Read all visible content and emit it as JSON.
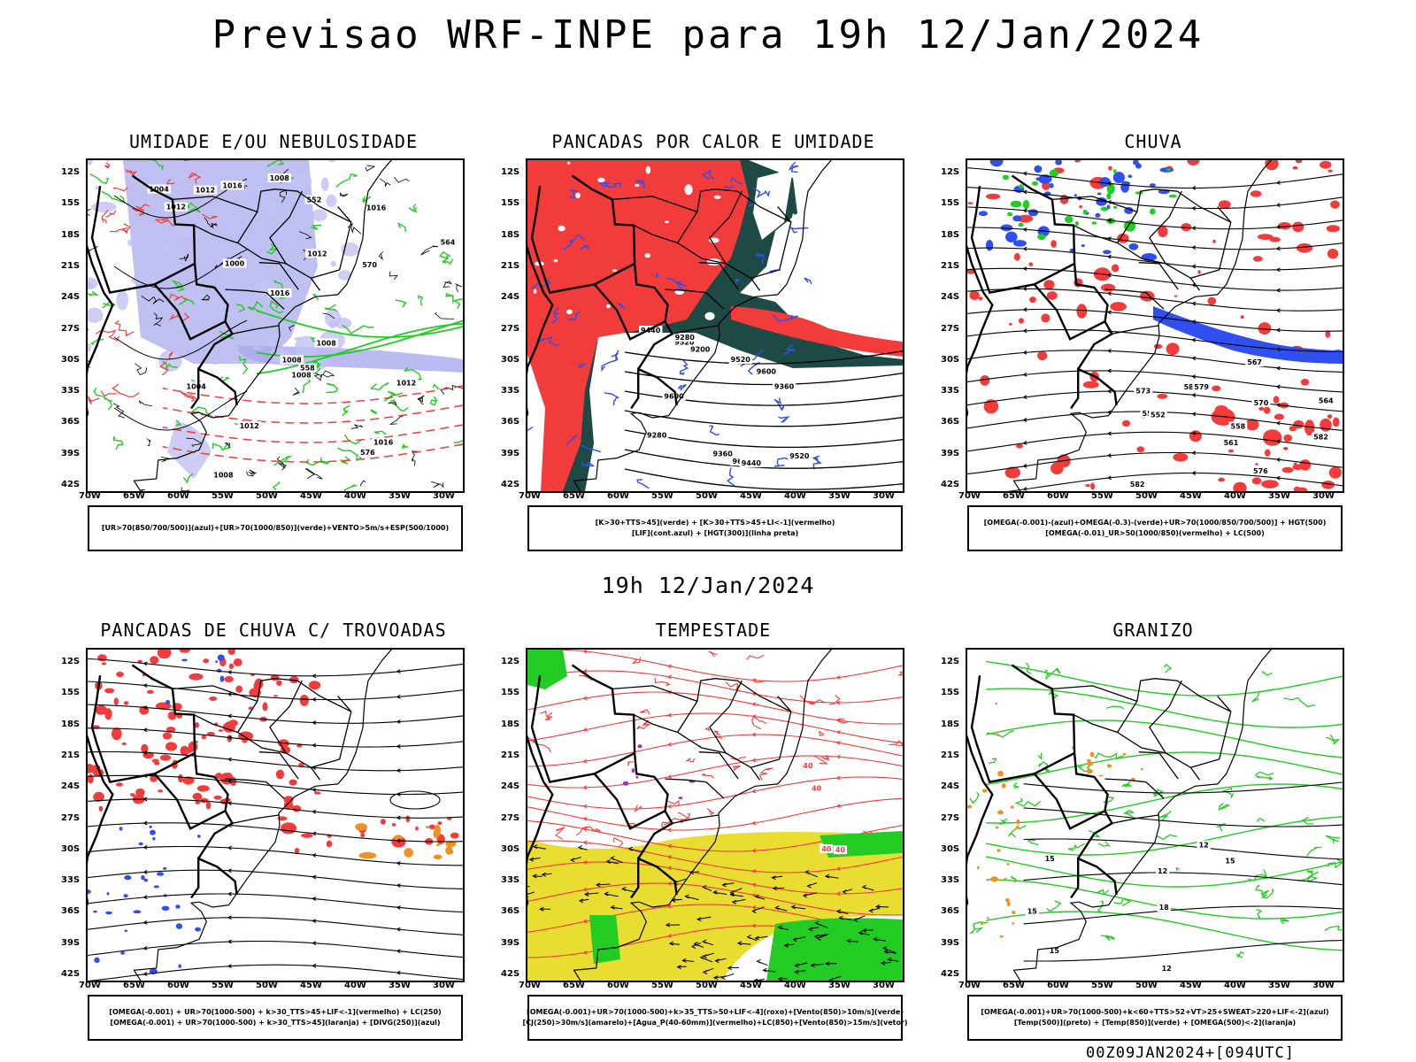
{
  "title": "Previsao WRF-INPE  para 19h 12/Jan/2024",
  "mid_title": "19h 12/Jan/2024",
  "footer": "00Z09JAN2024+[094UTC]",
  "colors": {
    "red": "#f23c3c",
    "green": "#22cc22",
    "blue": "#2f4ff0",
    "lavender": "#aaaaee",
    "yellow": "#e8dd30",
    "orange": "#f09020",
    "dark_teal": "#1e4a46",
    "black": "#000000"
  },
  "axes": {
    "lat_labels": [
      "12S",
      "15S",
      "18S",
      "21S",
      "24S",
      "27S",
      "30S",
      "33S",
      "36S",
      "39S",
      "42S"
    ],
    "lon_labels": [
      "70W",
      "65W",
      "60W",
      "55W",
      "50W",
      "45W",
      "40W",
      "35W",
      "30W"
    ]
  },
  "chart_data": [
    {
      "type": "map",
      "title": "UMIDADE E/OU NEBULOSIDADE",
      "legend": [
        "[UR>70(850/700/500)](azul)+[UR>70(1000/850)](verde)+VENTO>5m/s+ESP(500/1000)"
      ],
      "contour_labels": [
        "1008",
        "1008",
        "1008",
        "1004",
        "1004",
        "1012",
        "1016",
        "1012",
        "1016",
        "1012",
        "1012",
        "1016",
        "1008",
        "1012",
        "1008",
        "1016",
        "1000",
        "552",
        "570",
        "564",
        "558",
        "576"
      ]
    },
    {
      "type": "map",
      "title": "PANCADAS POR CALOR E UMIDADE",
      "legend": [
        "[K>30+TTS>45](verde) + [K>30+TTS>45+LI<-1](vermelho)",
        "[LIF](cont.azul) + [HGT(300)](linha preta)"
      ],
      "contour_labels": [
        "9600",
        "9520",
        "9600",
        "9520",
        "9600",
        "9440",
        "9360",
        "9280",
        "9200",
        "9520",
        "9440",
        "9360",
        "9280"
      ]
    },
    {
      "type": "map",
      "title": "CHUVA",
      "legend": [
        "[OMEGA(-0.001)-(azul)+OMEGA(-0.3)-(verde)+UR>70(1000/850/700/500)] + HGT(500)",
        "[OMEGA(-0.01)_UR>50(1000/850)(vermelho) + LC(500)"
      ],
      "contour_labels": [
        "588",
        "582",
        "582",
        "579",
        "576",
        "573",
        "570",
        "567",
        "564",
        "561",
        "558",
        "555",
        "552"
      ]
    },
    {
      "type": "map",
      "title": "PANCADAS DE CHUVA C/ TROVOADAS",
      "legend": [
        "[OMEGA(-0.001) + UR>70(1000-500) + k>30_TTS>45+LIF<-1](vermelho) + LC(250)",
        "[OMEGA(-0.001) + UR>70(1000-500) + k>30_TTS>45](laranja) + [DIVG(250)](azul)"
      ],
      "contour_labels": []
    },
    {
      "type": "map",
      "title": "TEMPESTADE",
      "legend": [
        "[OMEGA(-0.001)+UR>70(1000-500)+k>35_TTS>50+LIF<-4](roxo)+[Vento(850)>10m/s](verde)",
        "[CJ(250)>30m/s](amarelo)+[Agua_P(40-60mm)](vermelho)+LC(850)+[Vento(850)>15m/s](vetor)"
      ],
      "contour_labels": [
        "40",
        "40",
        "40",
        "40"
      ]
    },
    {
      "type": "map",
      "title": "GRANIZO",
      "legend": [
        "[OMEGA(-0.001)+UR>70(1000-500)+k<60+TTS>52+VT>25+SWEAT>220+LIF<-2](azul)",
        "[Temp(500)](preto) + [Temp(850)](verde) + [OMEGA(500)<-2](laranja)"
      ],
      "contour_labels": [
        "15",
        "15",
        "12",
        "12",
        "15",
        "12",
        "15",
        "18"
      ]
    }
  ]
}
